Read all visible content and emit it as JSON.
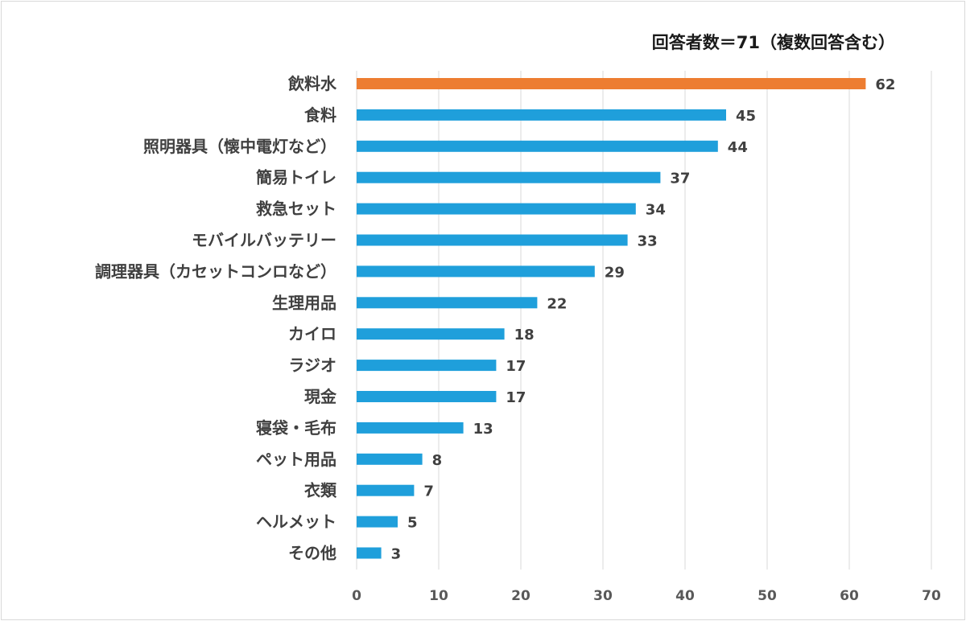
{
  "chart_data": {
    "type": "bar",
    "orientation": "horizontal",
    "title": "回答者数＝71（複数回答含む）",
    "xlabel": "",
    "ylabel": "",
    "xlim": [
      0,
      70
    ],
    "xticks": [
      0,
      10,
      20,
      30,
      40,
      50,
      60,
      70
    ],
    "grid": true,
    "categories": [
      "飲料水",
      "食料",
      "照明器具（懐中電灯など）",
      "簡易トイレ",
      "救急セット",
      "モバイルバッテリー",
      "調理器具（カセットコンロなど）",
      "生理用品",
      "カイロ",
      "ラジオ",
      "現金",
      "寝袋・毛布",
      "ペット用品",
      "衣類",
      "ヘルメット",
      "その他"
    ],
    "values": [
      62,
      45,
      44,
      37,
      34,
      33,
      29,
      22,
      18,
      17,
      17,
      13,
      8,
      7,
      5,
      3
    ],
    "colors": {
      "highlight": "#ED7D31",
      "default": "#1F9FDB",
      "grid": "#d9d9d9",
      "text": "#404040",
      "tick": "#595959"
    },
    "highlight_index": 0
  }
}
